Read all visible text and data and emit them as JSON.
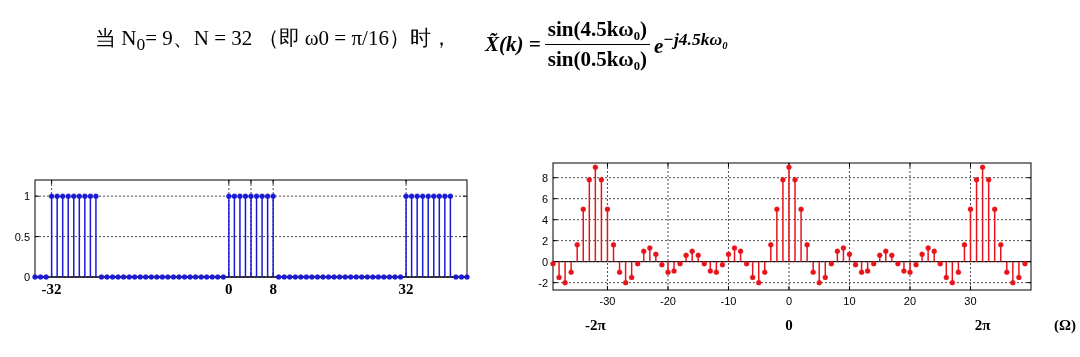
{
  "chart_data": [
    {
      "type": "lollipop",
      "title": "当 N$_{0}$= 9、N = 32 （即 ω0 = π/16）时，",
      "annotations": [
        "X̃(k) =",
        "sin(4.5kω₀)",
        "sin(0.5kω₀)",
        "e$^{−j4.5kω₀}$"
      ],
      "x": [
        -35,
        -34,
        -33,
        -32,
        -31,
        -30,
        -29,
        -28,
        -27,
        -26,
        -25,
        -24,
        -23,
        -22,
        -21,
        -20,
        -19,
        -18,
        -17,
        -16,
        -15,
        -14,
        -13,
        -12,
        -11,
        -10,
        -9,
        -8,
        -7,
        -6,
        -5,
        -4,
        -3,
        -2,
        -1,
        0,
        1,
        2,
        3,
        4,
        5,
        6,
        7,
        8,
        9,
        10,
        11,
        12,
        13,
        14,
        15,
        16,
        17,
        18,
        19,
        20,
        21,
        22,
        23,
        24,
        25,
        26,
        27,
        28,
        29,
        30,
        31,
        32,
        33,
        34,
        35,
        36,
        37,
        38,
        39,
        40,
        41,
        42,
        43
      ],
      "values": [
        0,
        0,
        0,
        1,
        1,
        1,
        1,
        1,
        1,
        1,
        1,
        1,
        0,
        0,
        0,
        0,
        0,
        0,
        0,
        0,
        0,
        0,
        0,
        0,
        0,
        0,
        0,
        0,
        0,
        0,
        0,
        0,
        0,
        0,
        0,
        1,
        1,
        1,
        1,
        1,
        1,
        1,
        1,
        1,
        0,
        0,
        0,
        0,
        0,
        0,
        0,
        0,
        0,
        0,
        0,
        0,
        0,
        0,
        0,
        0,
        0,
        0,
        0,
        0,
        0,
        0,
        0,
        1,
        1,
        1,
        1,
        1,
        1,
        1,
        1,
        1,
        0,
        0,
        0
      ],
      "color": "#1a1ad6",
      "marker": "circle",
      "grid": true,
      "xlim": [
        -35,
        43
      ],
      "ylim": [
        0,
        1.2
      ],
      "xticks": [
        -32,
        0,
        {
          "value": 4,
          "label": null
        },
        8,
        32
      ],
      "yticks": [
        0,
        0.5,
        1
      ]
    },
    {
      "type": "lollipop",
      "x": [
        -39,
        -38,
        -37,
        -36,
        -35,
        -34,
        -33,
        -32,
        -31,
        -30,
        -29,
        -28,
        -27,
        -26,
        -25,
        -24,
        -23,
        -22,
        -21,
        -20,
        -19,
        -18,
        -17,
        -16,
        -15,
        -14,
        -13,
        -12,
        -11,
        -10,
        -9,
        -8,
        -7,
        -6,
        -5,
        -4,
        -3,
        -2,
        -1,
        0,
        1,
        2,
        3,
        4,
        5,
        6,
        7,
        8,
        9,
        10,
        11,
        12,
        13,
        14,
        15,
        16,
        17,
        18,
        19,
        20,
        21,
        22,
        23,
        24,
        25,
        26,
        27,
        28,
        29,
        30,
        31,
        32,
        33,
        34,
        35,
        36,
        37,
        38,
        39
      ],
      "values": [
        -0.2,
        -1.5,
        -2,
        -1,
        1.6,
        5,
        7.8,
        9,
        7.8,
        5,
        1.6,
        -1,
        -2,
        -1.5,
        -0.2,
        1,
        1.3,
        0.7,
        -0.3,
        -1,
        -0.9,
        -0.2,
        0.6,
        1,
        0.6,
        -0.2,
        -0.9,
        -1,
        -0.3,
        0.7,
        1.3,
        1,
        -0.2,
        -1.5,
        -2,
        -1,
        1.6,
        5,
        7.8,
        9,
        7.8,
        5,
        1.6,
        -1,
        -2,
        -1.5,
        -0.2,
        1,
        1.3,
        0.7,
        -0.3,
        -1,
        -0.9,
        -0.2,
        0.6,
        1,
        0.6,
        -0.2,
        -0.9,
        -1,
        -0.3,
        0.7,
        1.3,
        1,
        -0.2,
        -1.5,
        -2,
        -1,
        1.6,
        5,
        7.8,
        9,
        7.8,
        5,
        1.6,
        -1,
        -2,
        -1.5,
        -0.2
      ],
      "color": "#e8141b",
      "marker": "circle",
      "grid": true,
      "xlim": [
        -39,
        40
      ],
      "ylim": [
        -2.7,
        9.4
      ],
      "xticks": [
        -30,
        -20,
        -10,
        0,
        10,
        20,
        30
      ],
      "yticks": [
        -2,
        0,
        2,
        4,
        6,
        8
      ],
      "x2lim": [
        -7.658,
        7.854
      ],
      "x2ticks": [
        {
          "value": -6.283,
          "label": "-2π"
        },
        0,
        {
          "value": 6.283,
          "label": "2π"
        }
      ],
      "xlabel": "(Ω)"
    }
  ]
}
